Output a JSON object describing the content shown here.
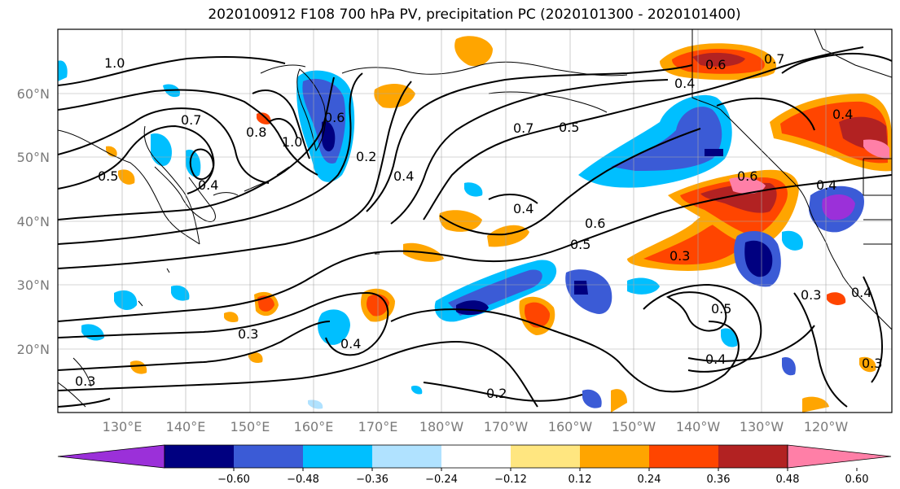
{
  "title": "2020100912 F108 700 hPa PV, precipitation PC (2020101300 - 2020101400)",
  "lat_labels": [
    "60°N",
    "50°N",
    "40°N",
    "30°N",
    "20°N"
  ],
  "lon_labels": [
    "130°E",
    "140°E",
    "150°E",
    "160°E",
    "170°E",
    "180°W",
    "170°W",
    "160°W",
    "150°W",
    "140°W",
    "130°W",
    "120°W"
  ],
  "colorbar": {
    "colors": [
      "#9b30d9",
      "#000080",
      "#3b5bd6",
      "#00bfff",
      "#b0e2ff",
      "#ffffff",
      "#ffe680",
      "#ffa500",
      "#ff4500",
      "#b22222",
      "#ff7fa7"
    ],
    "tick_labels": [
      "−0.60",
      "−0.48",
      "−0.36",
      "−0.24",
      "−0.12",
      "0.12",
      "0.24",
      "0.36",
      "0.48",
      "0.60"
    ]
  },
  "contour_labels": [
    "1.0",
    "0.7",
    "0.5",
    "0.4",
    "0.2",
    "1.0",
    "0.8",
    "0.4",
    "0.6",
    "0.4",
    "0.7",
    "0.5",
    "0.6",
    "0.7",
    "0.4",
    "0.4",
    "0.4",
    "0.6",
    "0.5",
    "0.6",
    "0.3",
    "0.3",
    "0.4",
    "0.5",
    "0.4",
    "0.3",
    "0.2",
    "0.3",
    "0.4",
    "0.3"
  ]
}
